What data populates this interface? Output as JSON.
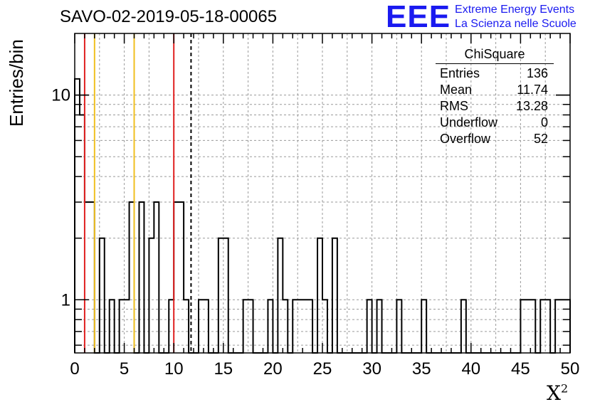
{
  "page": {
    "title": "SAVO-02-2019-05-18-00065",
    "logo": {
      "letters": "EEE",
      "line1": "Extreme Energy Events",
      "line2": "La Scienza nelle Scuole"
    }
  },
  "stats_box": {
    "title": "ChiSquare",
    "rows": [
      {
        "label": "Entries",
        "value": "136"
      },
      {
        "label": "Mean",
        "value": "11.74"
      },
      {
        "label": "RMS",
        "value": "13.28"
      },
      {
        "label": "Underflow",
        "value": "0"
      },
      {
        "label": "Overflow",
        "value": "52"
      }
    ]
  },
  "chart_data": {
    "type": "histogram",
    "title": "SAVO-02-2019-05-18-00065",
    "xlabel": "X",
    "xlabel_superscript": "2",
    "ylabel": "Entries/bin",
    "x_scale": "linear",
    "y_scale": "log",
    "xlim": [
      0,
      50
    ],
    "ylim": [
      0.55,
      20
    ],
    "x_ticks": [
      "0",
      "5",
      "10",
      "15",
      "20",
      "25",
      "30",
      "35",
      "40",
      "45",
      "50"
    ],
    "y_tick_labels": [
      {
        "value": 1,
        "label": "1"
      },
      {
        "value": 10,
        "label": "10"
      }
    ],
    "grid": true,
    "bin_width": 0.5,
    "bins": [
      {
        "x": 0.0,
        "y": 12
      },
      {
        "x": 0.5,
        "y": 8
      },
      {
        "x": 1.0,
        "y": 3
      },
      {
        "x": 1.5,
        "y": 3
      },
      {
        "x": 2.5,
        "y": 2
      },
      {
        "x": 3.5,
        "y": 1
      },
      {
        "x": 4.5,
        "y": 1
      },
      {
        "x": 5.0,
        "y": 1
      },
      {
        "x": 5.5,
        "y": 3
      },
      {
        "x": 6.5,
        "y": 3
      },
      {
        "x": 7.5,
        "y": 2
      },
      {
        "x": 8.0,
        "y": 3
      },
      {
        "x": 9.5,
        "y": 1
      },
      {
        "x": 10.0,
        "y": 3
      },
      {
        "x": 10.5,
        "y": 3
      },
      {
        "x": 11.0,
        "y": 1
      },
      {
        "x": 12.5,
        "y": 1
      },
      {
        "x": 13.0,
        "y": 1
      },
      {
        "x": 14.5,
        "y": 2
      },
      {
        "x": 15.0,
        "y": 2
      },
      {
        "x": 17.0,
        "y": 1
      },
      {
        "x": 17.5,
        "y": 1
      },
      {
        "x": 19.5,
        "y": 1
      },
      {
        "x": 20.5,
        "y": 2
      },
      {
        "x": 21.0,
        "y": 1
      },
      {
        "x": 22.0,
        "y": 1
      },
      {
        "x": 22.5,
        "y": 1
      },
      {
        "x": 23.0,
        "y": 1
      },
      {
        "x": 23.5,
        "y": 1
      },
      {
        "x": 24.5,
        "y": 2
      },
      {
        "x": 25.0,
        "y": 1
      },
      {
        "x": 26.0,
        "y": 2
      },
      {
        "x": 29.5,
        "y": 1
      },
      {
        "x": 30.5,
        "y": 1
      },
      {
        "x": 32.5,
        "y": 1
      },
      {
        "x": 35.0,
        "y": 1
      },
      {
        "x": 39.0,
        "y": 1
      },
      {
        "x": 45.0,
        "y": 1
      },
      {
        "x": 45.5,
        "y": 1
      },
      {
        "x": 46.0,
        "y": 1
      },
      {
        "x": 47.0,
        "y": 1
      },
      {
        "x": 47.5,
        "y": 1
      },
      {
        "x": 48.5,
        "y": 1
      },
      {
        "x": 49.0,
        "y": 1
      },
      {
        "x": 49.5,
        "y": 1
      }
    ],
    "reference_lines": [
      {
        "x": 1.0,
        "color": "#e02020",
        "style": "solid"
      },
      {
        "x": 10.0,
        "color": "#e02020",
        "style": "solid"
      },
      {
        "x": 2.0,
        "color": "#f0c020",
        "style": "solid"
      },
      {
        "x": 6.0,
        "color": "#f0c020",
        "style": "solid"
      },
      {
        "x": 11.74,
        "color": "#000000",
        "style": "dashed"
      }
    ]
  }
}
